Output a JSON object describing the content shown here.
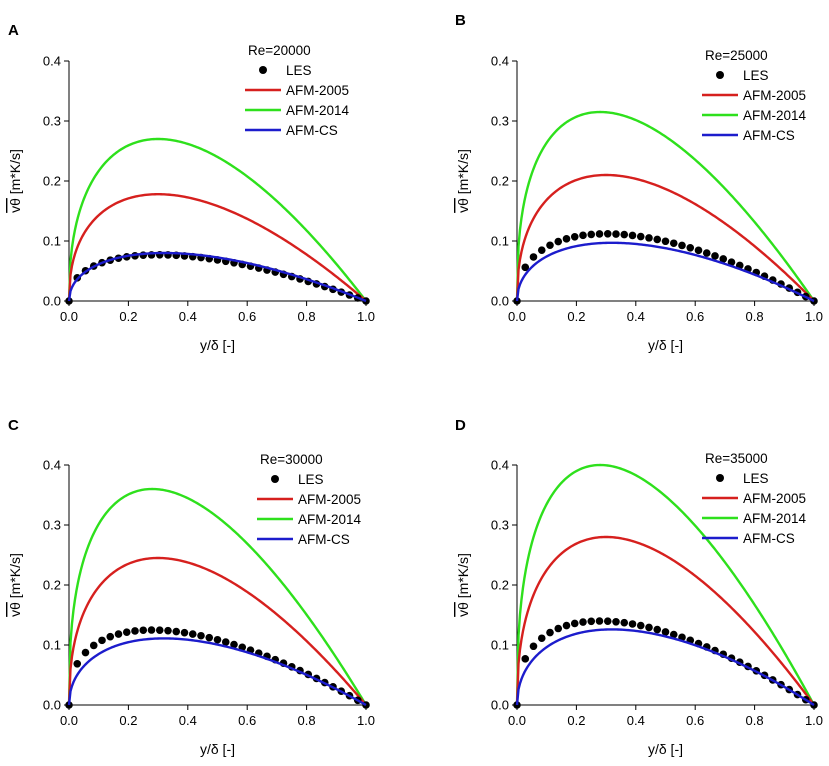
{
  "figure": {
    "description_panels": [
      "A",
      "B",
      "C",
      "D"
    ]
  },
  "colors": {
    "LES": "#000000",
    "AFM-2005": "#d6201e",
    "AFM-2014": "#2ee01c",
    "AFM-CS": "#1c1ccc"
  },
  "chart_data": [
    {
      "type": "line",
      "panel": "A",
      "title": "Re=20000",
      "xlabel": "y/δ [-]",
      "ylabel": "vθ [m*K/s]",
      "ylabel_overline": "vθ",
      "ylabel_unit": "[m*K/s]",
      "xlim": [
        0,
        1
      ],
      "ylim": [
        0,
        0.4
      ],
      "xticks": [
        "0.0",
        "0.2",
        "0.4",
        "0.6",
        "0.8",
        "1.0"
      ],
      "yticks": [
        "0.0",
        "0.1",
        "0.2",
        "0.3",
        "0.4"
      ],
      "series": [
        {
          "name": "LES",
          "style": "markers",
          "peak": 0.077,
          "peak_x": 0.3
        },
        {
          "name": "AFM-2005",
          "style": "line",
          "peak": 0.178,
          "peak_x": 0.3
        },
        {
          "name": "AFM-2014",
          "style": "line",
          "peak": 0.27,
          "peak_x": 0.3
        },
        {
          "name": "AFM-CS",
          "style": "line",
          "peak": 0.08,
          "peak_x": 0.32
        }
      ]
    },
    {
      "type": "line",
      "panel": "B",
      "title": "Re=25000",
      "xlabel": "y/δ [-]",
      "ylabel": "vθ [m*K/s]",
      "ylabel_overline": "vθ",
      "ylabel_unit": "[m*K/s]",
      "xlim": [
        0,
        1
      ],
      "ylim": [
        0,
        0.4
      ],
      "xticks": [
        "0.0",
        "0.2",
        "0.4",
        "0.6",
        "0.8",
        "1.0"
      ],
      "yticks": [
        "0.0",
        "0.1",
        "0.2",
        "0.3",
        "0.4"
      ],
      "series": [
        {
          "name": "LES",
          "style": "markers",
          "peak": 0.112,
          "peak_x": 0.3
        },
        {
          "name": "AFM-2005",
          "style": "line",
          "peak": 0.21,
          "peak_x": 0.3
        },
        {
          "name": "AFM-2014",
          "style": "line",
          "peak": 0.315,
          "peak_x": 0.28
        },
        {
          "name": "AFM-CS",
          "style": "line",
          "peak": 0.097,
          "peak_x": 0.32
        }
      ]
    },
    {
      "type": "line",
      "panel": "C",
      "title": "Re=30000",
      "xlabel": "y/δ [-]",
      "ylabel": "vθ [m*K/s]",
      "ylabel_overline": "vθ",
      "ylabel_unit": "[m*K/s]",
      "xlim": [
        0,
        1
      ],
      "ylim": [
        0,
        0.4
      ],
      "xticks": [
        "0.0",
        "0.2",
        "0.4",
        "0.6",
        "0.8",
        "1.0"
      ],
      "yticks": [
        "0.0",
        "0.1",
        "0.2",
        "0.3",
        "0.4"
      ],
      "series": [
        {
          "name": "LES",
          "style": "markers",
          "peak": 0.125,
          "peak_x": 0.28
        },
        {
          "name": "AFM-2005",
          "style": "line",
          "peak": 0.245,
          "peak_x": 0.3
        },
        {
          "name": "AFM-2014",
          "style": "line",
          "peak": 0.36,
          "peak_x": 0.28
        },
        {
          "name": "AFM-CS",
          "style": "line",
          "peak": 0.111,
          "peak_x": 0.32
        }
      ]
    },
    {
      "type": "line",
      "panel": "D",
      "title": "Re=35000",
      "xlabel": "y/δ [-]",
      "ylabel": "vθ [m*K/s]",
      "ylabel_overline": "vθ",
      "ylabel_unit": "[m*K/s]",
      "xlim": [
        0,
        1
      ],
      "ylim": [
        0,
        0.4
      ],
      "xticks": [
        "0.0",
        "0.2",
        "0.4",
        "0.6",
        "0.8",
        "1.0"
      ],
      "yticks": [
        "0.0",
        "0.1",
        "0.2",
        "0.3",
        "0.4"
      ],
      "series": [
        {
          "name": "LES",
          "style": "markers",
          "peak": 0.14,
          "peak_x": 0.28
        },
        {
          "name": "AFM-2005",
          "style": "line",
          "peak": 0.28,
          "peak_x": 0.3
        },
        {
          "name": "AFM-2014",
          "style": "line",
          "peak": 0.4,
          "peak_x": 0.28
        },
        {
          "name": "AFM-CS",
          "style": "line",
          "peak": 0.126,
          "peak_x": 0.32
        }
      ]
    }
  ]
}
